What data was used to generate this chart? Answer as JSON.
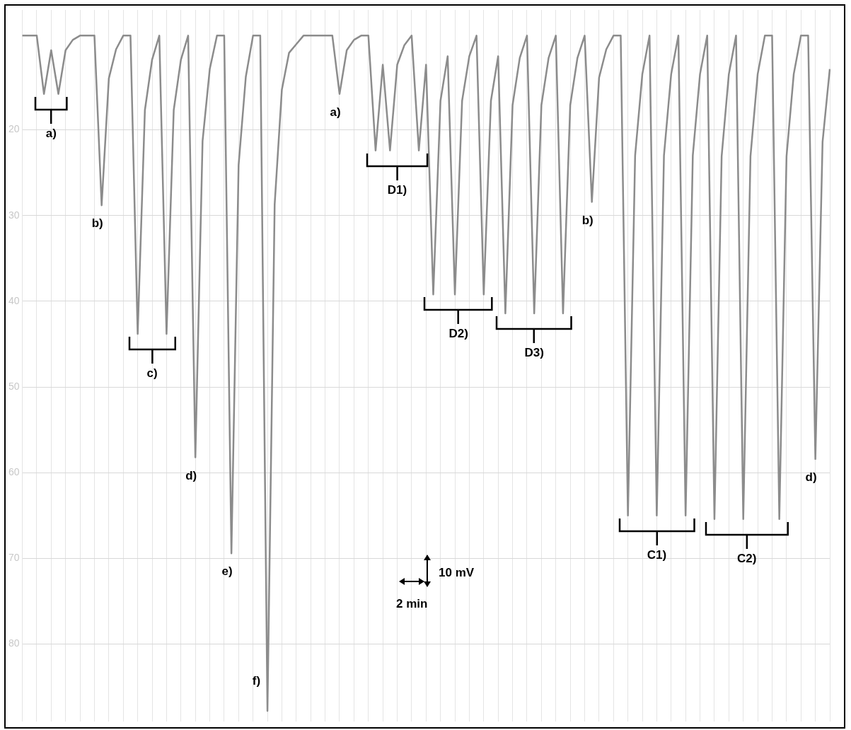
{
  "chart_data": {
    "type": "line",
    "marker": "none",
    "line_style": "solid",
    "color": "#8c8c8c",
    "grid": true,
    "tick_labels": "y",
    "categories": [
      null,
      null,
      null,
      null,
      null,
      null,
      null,
      null,
      null,
      null,
      null,
      null,
      null,
      null,
      null,
      null,
      null,
      null,
      null,
      null,
      null,
      null,
      null,
      null,
      null,
      null,
      null,
      null,
      null,
      null,
      null,
      null,
      null,
      null,
      null,
      null,
      null,
      null,
      null,
      null,
      null,
      null,
      null,
      null,
      null,
      null,
      null,
      null,
      null,
      null,
      null,
      null,
      null,
      null,
      null,
      null,
      null,
      null,
      null,
      null,
      null,
      null,
      null,
      null,
      null,
      null,
      null,
      null,
      null,
      null,
      null,
      null,
      null,
      null,
      null,
      null,
      null,
      null,
      null,
      null,
      null,
      null,
      null,
      null,
      null,
      null,
      null,
      null,
      null,
      null,
      null,
      null,
      null,
      null,
      null,
      null,
      null,
      null,
      null,
      null,
      null,
      null,
      null,
      null,
      null,
      null,
      null,
      null,
      null,
      null,
      null,
      null,
      null
    ],
    "values": [
      9,
      9,
      9,
      15.8,
      10.7,
      15.8,
      10.7,
      9.5,
      9,
      9,
      9,
      28.8,
      14,
      10.6,
      9,
      9,
      43.8,
      17.7,
      11.8,
      9,
      43.8,
      17.7,
      11.8,
      9,
      58.2,
      21.3,
      12.9,
      9,
      9,
      69.4,
      24.1,
      13.8,
      9,
      9,
      87.8,
      28.7,
      15.3,
      11,
      10,
      9,
      9,
      9,
      9,
      9,
      15.8,
      10.7,
      9.5,
      9,
      9,
      22.4,
      12.4,
      22.4,
      12.4,
      10.1,
      9,
      22.4,
      12.4,
      39.2,
      16.6,
      11.4,
      39.2,
      16.6,
      11.4,
      9,
      39.2,
      16.6,
      11.4,
      41.4,
      17.1,
      11.6,
      9,
      41.4,
      17.1,
      11.6,
      9,
      41.4,
      17.1,
      11.6,
      9,
      28.4,
      13.9,
      10.6,
      9,
      9,
      65,
      23,
      13.5,
      9,
      65,
      23,
      13.5,
      9,
      65,
      23,
      13.5,
      9,
      65.4,
      23.1,
      13.5,
      9,
      65.4,
      23.1,
      13.5,
      9,
      9,
      65.4,
      23.1,
      13.5,
      9,
      9,
      58.4,
      21.4,
      12.9
    ],
    "ylim": [
      89,
      6
    ],
    "yticks": [
      20,
      30,
      40,
      50,
      60,
      70,
      80
    ],
    "annotations": [
      "a)",
      "b)",
      "c)",
      "d)",
      "e)",
      "f)",
      "a)",
      "D1)",
      "D2)",
      "D3)",
      "b)",
      "C1)",
      "C2)",
      "d)",
      "10 mV",
      "2 min"
    ]
  }
}
